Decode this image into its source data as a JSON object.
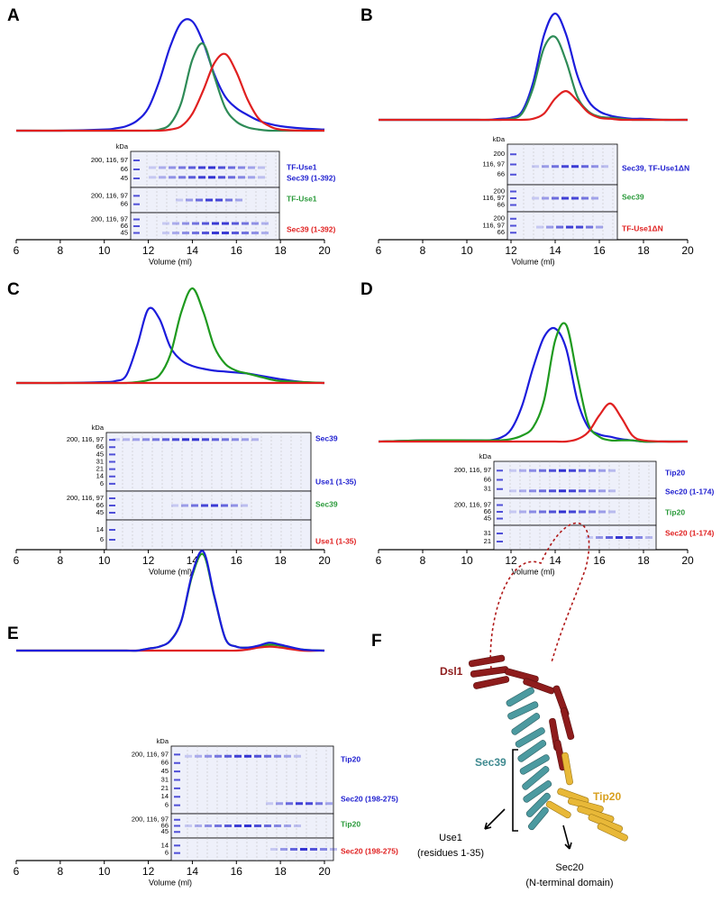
{
  "chart_data": [
    {
      "type": "line",
      "panel": "A",
      "x_label": "Volume (ml)",
      "x": [
        6,
        8,
        10,
        10.5,
        11,
        11.5,
        12,
        12.5,
        13,
        13.5,
        14,
        14.5,
        15,
        15.5,
        16,
        16.5,
        17,
        17.5,
        18,
        19,
        20
      ],
      "xlim": [
        6,
        20
      ],
      "xticks": [
        6,
        8,
        10,
        12,
        14,
        16,
        18,
        20
      ],
      "ylim": [
        0,
        100
      ],
      "series": [
        {
          "color": "#1c1cdc",
          "values": [
            0,
            0,
            1,
            2,
            4,
            9,
            20,
            44,
            75,
            96,
            97,
            78,
            50,
            30,
            20,
            14,
            9,
            6,
            4,
            2,
            1
          ]
        },
        {
          "color": "#2e8b57",
          "values": [
            0,
            0,
            0,
            0,
            0,
            0,
            0,
            1,
            6,
            25,
            63,
            77,
            48,
            20,
            8,
            3,
            1,
            0,
            0,
            0,
            0
          ]
        },
        {
          "color": "#e02020",
          "values": [
            0,
            0,
            0,
            0,
            0,
            0,
            0,
            0,
            1,
            4,
            15,
            36,
            60,
            68,
            52,
            28,
            11,
            4,
            1,
            0,
            0
          ]
        }
      ],
      "gel": {
        "unit": "kDa",
        "sections": [
          {
            "mw": [
              "200, 116, 97",
              "66",
              "45"
            ],
            "labels": [
              {
                "text": "TF-Use1",
                "color": "#2020d0"
              },
              {
                "text": "Sec39 (1-392)",
                "color": "#2020d0"
              }
            ]
          },
          {
            "mw": [
              "200, 116, 97",
              "66"
            ],
            "labels": [
              {
                "text": "TF-Use1",
                "color": "#2a9a3a"
              }
            ]
          },
          {
            "mw": [
              "200, 116, 97",
              "66",
              "45"
            ],
            "labels": [
              {
                "text": "Sec39 (1-392)",
                "color": "#e02020"
              }
            ]
          }
        ]
      }
    },
    {
      "type": "line",
      "panel": "B",
      "x_label": "Volume (ml)",
      "x": [
        6,
        8,
        10,
        10.5,
        11,
        11.5,
        12,
        12.5,
        13,
        13.5,
        14,
        14.5,
        15,
        15.5,
        16,
        16.5,
        17,
        17.5,
        18,
        19,
        20
      ],
      "xlim": [
        6,
        20
      ],
      "xticks": [
        6,
        8,
        10,
        12,
        14,
        16,
        18,
        20
      ],
      "ylim": [
        0,
        100
      ],
      "series": [
        {
          "color": "#1c1cdc",
          "values": [
            0,
            0,
            0,
            0,
            0,
            1,
            2,
            8,
            35,
            80,
            100,
            80,
            42,
            18,
            8,
            4,
            2,
            1,
            1,
            0,
            0
          ]
        },
        {
          "color": "#2e8b57",
          "values": [
            0,
            0,
            0,
            0,
            0,
            0,
            1,
            6,
            30,
            68,
            78,
            55,
            22,
            8,
            3,
            2,
            1,
            0,
            0,
            0,
            0
          ]
        },
        {
          "color": "#e02020",
          "values": [
            0,
            0,
            0,
            0,
            0,
            0,
            0,
            0,
            1,
            6,
            20,
            27,
            18,
            7,
            2,
            1,
            0,
            0,
            0,
            0,
            0
          ]
        }
      ],
      "gel": {
        "unit": "kDa",
        "sections": [
          {
            "mw": [
              "200",
              "116, 97",
              "66"
            ],
            "labels": [
              {
                "text": "Sec39, TF-Use1ΔN",
                "color": "#2020d0"
              }
            ]
          },
          {
            "mw": [
              "200",
              "116, 97",
              "66"
            ],
            "labels": [
              {
                "text": "Sec39",
                "color": "#2a9a3a"
              }
            ]
          },
          {
            "mw": [
              "200",
              "116, 97",
              "66"
            ],
            "labels": [
              {
                "text": "TF-Use1ΔN",
                "color": "#e02020"
              }
            ]
          }
        ]
      }
    },
    {
      "type": "line",
      "panel": "C",
      "x_label": "Volume (ml)",
      "x": [
        6,
        8,
        10,
        10.5,
        11,
        11.5,
        12,
        12.5,
        13,
        13.5,
        14,
        14.5,
        15,
        15.5,
        16,
        16.5,
        17,
        17.5,
        18,
        19,
        20
      ],
      "xlim": [
        6,
        20
      ],
      "xticks": [
        6,
        8,
        10,
        12,
        14,
        16,
        18,
        20
      ],
      "ylim": [
        0,
        100
      ],
      "series": [
        {
          "color": "#1c1cdc",
          "values": [
            0,
            0,
            1,
            2,
            8,
            40,
            78,
            68,
            38,
            24,
            18,
            15,
            13,
            12,
            11,
            10,
            8,
            6,
            4,
            1,
            0
          ]
        },
        {
          "color": "#1f9a1f",
          "values": [
            0,
            0,
            0,
            0,
            0,
            1,
            3,
            8,
            30,
            75,
            100,
            75,
            38,
            20,
            13,
            10,
            7,
            4,
            2,
            1,
            0
          ]
        },
        {
          "color": "#e02020",
          "values": [
            0,
            0,
            0,
            0,
            0,
            0,
            0,
            0,
            0,
            0,
            0,
            0,
            0,
            0,
            0,
            0,
            0,
            0,
            0,
            0,
            0
          ]
        }
      ],
      "gel": {
        "unit": "kDa",
        "sections": [
          {
            "mw": [
              "200, 116, 97",
              "66",
              "45",
              "31",
              "21",
              "14",
              "6"
            ],
            "labels": [
              {
                "text": "Sec39",
                "color": "#2020d0"
              },
              {
                "text": "Use1 (1-35)",
                "color": "#2020d0"
              }
            ]
          },
          {
            "mw": [
              "200, 116, 97",
              "66",
              "45"
            ],
            "labels": [
              {
                "text": "Sec39",
                "color": "#2a9a3a"
              }
            ]
          },
          {
            "mw": [
              "14",
              "6"
            ],
            "labels": [
              {
                "text": "Use1 (1-35)",
                "color": "#e02020"
              }
            ]
          }
        ]
      }
    },
    {
      "type": "line",
      "panel": "D",
      "x_label": "Volume (ml)",
      "x": [
        6,
        8,
        10,
        10.5,
        11,
        11.5,
        12,
        12.5,
        13,
        13.5,
        14,
        14.5,
        15,
        15.5,
        16,
        16.5,
        17,
        17.5,
        18,
        19,
        20
      ],
      "xlim": [
        6,
        20
      ],
      "xticks": [
        6,
        8,
        10,
        12,
        14,
        16,
        18,
        20
      ],
      "ylim": [
        0,
        100
      ],
      "series": [
        {
          "color": "#1c1cdc",
          "values": [
            0,
            1,
            1,
            1,
            1,
            3,
            10,
            30,
            62,
            88,
            95,
            78,
            35,
            12,
            6,
            4,
            2,
            1,
            0,
            0,
            0
          ]
        },
        {
          "color": "#1f9a1f",
          "values": [
            0,
            1,
            1,
            1,
            1,
            1,
            2,
            5,
            12,
            35,
            85,
            98,
            55,
            15,
            4,
            1,
            1,
            1,
            0,
            0,
            0
          ]
        },
        {
          "color": "#e02020",
          "values": [
            0,
            0,
            0,
            0,
            0,
            0,
            0,
            0,
            0,
            0,
            0,
            0,
            2,
            8,
            22,
            32,
            20,
            5,
            1,
            0,
            0
          ]
        }
      ],
      "gel": {
        "unit": "kDa",
        "sections": [
          {
            "mw": [
              "200, 116, 97",
              "66",
              "31"
            ],
            "labels": [
              {
                "text": "Tip20",
                "color": "#2020d0"
              },
              {
                "text": "Sec20 (1-174)",
                "color": "#2020d0"
              }
            ]
          },
          {
            "mw": [
              "200, 116, 97",
              "66",
              "45"
            ],
            "labels": [
              {
                "text": "Tip20",
                "color": "#2a9a3a"
              }
            ]
          },
          {
            "mw": [
              "31",
              "21"
            ],
            "labels": [
              {
                "text": "Sec20 (1-174)",
                "color": "#e02020"
              }
            ]
          }
        ]
      }
    },
    {
      "type": "line",
      "panel": "E",
      "x_label": "Volume (ml)",
      "x": [
        6,
        8,
        10,
        10.5,
        11,
        11.5,
        12,
        12.5,
        13,
        13.5,
        14,
        14.5,
        15,
        15.5,
        16,
        16.5,
        17,
        17.5,
        18,
        19,
        20
      ],
      "xlim": [
        6,
        20
      ],
      "xticks": [
        6,
        8,
        10,
        12,
        14,
        16,
        18,
        20
      ],
      "ylim": [
        0,
        100
      ],
      "series": [
        {
          "color": "#1f9a1f",
          "values": [
            0,
            0,
            0,
            0,
            0,
            0,
            2,
            4,
            10,
            30,
            76,
            97,
            54,
            12,
            4,
            3,
            4,
            6,
            5,
            1,
            0
          ]
        },
        {
          "color": "#e02020",
          "values": [
            0,
            0,
            0,
            0,
            0,
            0,
            0,
            0,
            0,
            0,
            0,
            0,
            0,
            0,
            0,
            1,
            3,
            4,
            3,
            0,
            0
          ]
        },
        {
          "color": "#1c1cdc",
          "values": [
            0,
            0,
            0,
            0,
            0,
            0,
            2,
            4,
            10,
            30,
            78,
            100,
            55,
            12,
            4,
            3,
            5,
            8,
            6,
            1,
            0
          ]
        }
      ],
      "gel": {
        "unit": "kDa",
        "sections": [
          {
            "mw": [
              "200, 116, 97",
              "66",
              "45",
              "31",
              "21",
              "14",
              "6"
            ],
            "labels": [
              {
                "text": "Tip20",
                "color": "#2020d0"
              },
              {
                "text": "Sec20 (198-275)",
                "color": "#2020d0"
              }
            ]
          },
          {
            "mw": [
              "200, 116, 97",
              "66",
              "45"
            ],
            "labels": [
              {
                "text": "Tip20",
                "color": "#2a9a3a"
              }
            ]
          },
          {
            "mw": [
              "14",
              "6"
            ],
            "labels": [
              {
                "text": "Sec20 (198-275)",
                "color": "#e02020"
              }
            ]
          }
        ]
      }
    }
  ],
  "panel_f": {
    "letter": "F",
    "dsl1": "Dsl1",
    "sec39": "Sec39",
    "tip20": "Tip20",
    "use1": "Use1",
    "use1_note": "(residues 1-35)",
    "sec20": "Sec20",
    "sec20_note": "(N-terminal domain)"
  }
}
